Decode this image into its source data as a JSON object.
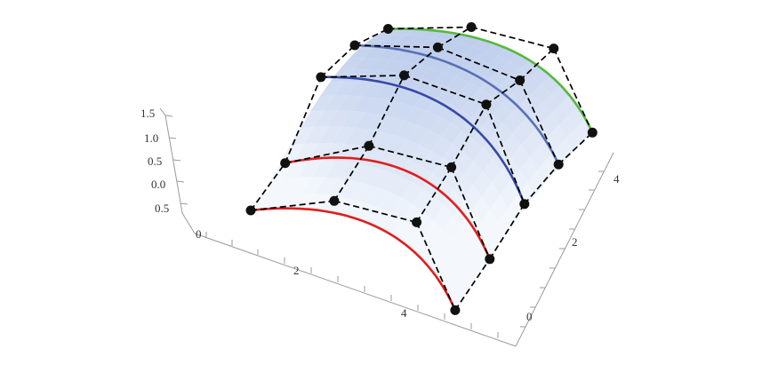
{
  "chart_data": {
    "type": "surface",
    "axes": {
      "x": {
        "ticks": [
          "0",
          "2",
          "4"
        ]
      },
      "y": {
        "ticks": [
          "0",
          "2",
          "4"
        ]
      },
      "z": {
        "ticks": [
          "1.5",
          "1.0",
          "0.5",
          "0.0",
          "0.5"
        ]
      }
    },
    "grid": false,
    "legend": "none",
    "colors": {
      "surface_light": "#f2f6fc",
      "surface_dark": "#9fb6e2",
      "cage": "#000000",
      "red": "#e11d1d",
      "blue": "#3649a8",
      "steel_blue": "#5a6fb6",
      "green": "#55b83a"
    },
    "control_polygon_rows": [
      {
        "color": "#000000",
        "points": [
          [
            0,
            0,
            0
          ],
          [
            2,
            0,
            0.5
          ],
          [
            4,
            0,
            0.6
          ],
          [
            5,
            0,
            -0.35
          ]
        ]
      },
      {
        "color": "#000000",
        "points": [
          [
            0,
            1,
            0.3
          ],
          [
            2,
            1,
            0.9
          ],
          [
            4,
            1,
            1.0
          ],
          [
            5,
            1,
            0.0
          ]
        ]
      },
      {
        "color": "#000000",
        "points": [
          [
            0,
            2,
            1.1
          ],
          [
            2,
            2,
            1.5
          ],
          [
            4,
            2,
            1.5
          ],
          [
            5,
            2,
            0.4
          ]
        ]
      },
      {
        "color": "#000000",
        "points": [
          [
            0,
            3,
            1.2
          ],
          [
            2,
            3,
            1.55
          ],
          [
            4,
            3,
            1.5
          ],
          [
            5,
            3,
            0.6
          ]
        ]
      },
      {
        "color": "#000000",
        "points": [
          [
            0,
            4,
            1.1
          ],
          [
            2,
            4,
            1.5
          ],
          [
            4,
            4,
            1.6
          ],
          [
            5,
            4,
            0.7
          ]
        ]
      }
    ],
    "curves": [
      {
        "color": "#e11d1d",
        "row": 0
      },
      {
        "color": "#e11d1d",
        "row": 1
      },
      {
        "color": "#3649a8",
        "row": 2
      },
      {
        "color": "#5a6fb6",
        "row": 3
      },
      {
        "color": "#55b83a",
        "row": 4
      }
    ]
  }
}
